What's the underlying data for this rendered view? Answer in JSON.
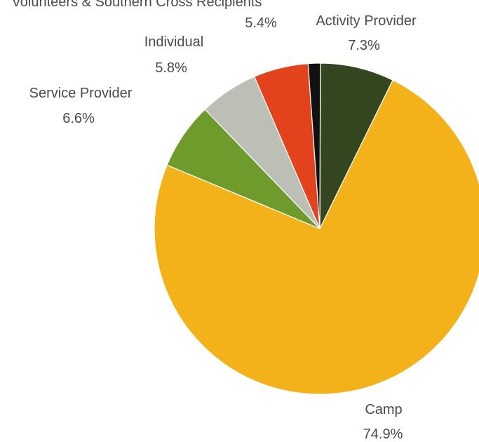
{
  "chart_data": {
    "type": "pie",
    "start_angle_deg": 0,
    "direction": "counterclockwise-from-right-edge-of-first-slice",
    "slices": [
      {
        "label": "Activity Provider",
        "value": 7.3,
        "value_label": "7.3%",
        "color": "#33461f"
      },
      {
        "label": "",
        "value": 1.2,
        "value_label": "",
        "color": "#111111"
      },
      {
        "label": "Volunteers & Southern Cross Recipients",
        "value": 5.4,
        "value_label": "5.4%",
        "color": "#e2431c"
      },
      {
        "label": "Individual",
        "value": 5.8,
        "value_label": "5.8%",
        "color": "#bcbfb6"
      },
      {
        "label": "Service Provider",
        "value": 6.6,
        "value_label": "6.6%",
        "color": "#6f9a2c"
      },
      {
        "label": "Camp",
        "value": 74.9,
        "value_label": "74.9%",
        "color": "#f3b11a"
      }
    ],
    "title": "",
    "legend": "none"
  }
}
